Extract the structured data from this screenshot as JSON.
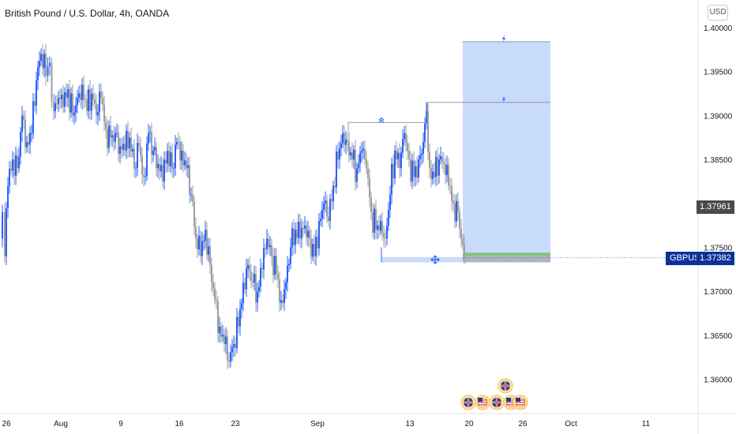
{
  "title": "British Pound / U.S. Dollar, 4h, OANDA",
  "currency": "USD",
  "symbol": "GBPUSD",
  "last_price_label": "1.37382",
  "marker_price_label": "1.37961",
  "colors": {
    "up": "#2962ff",
    "down": "#9e9e9e",
    "target_zone": "#c6d9fa",
    "last_price_bg": "#0c3299",
    "marker_price_bg": "#4a4a4a"
  },
  "chart_data": {
    "type": "candlestick",
    "y_axis": {
      "ticks": [
        "1.40000",
        "1.39500",
        "1.39000",
        "1.38500",
        "1.37500",
        "1.37000",
        "1.36500",
        "1.36000"
      ],
      "ylim": [
        1.357,
        1.4025
      ]
    },
    "x_axis": {
      "ticks": [
        "26",
        "Aug",
        "9",
        "16",
        "23",
        "Sep",
        "13",
        "20",
        "26",
        "Oct",
        "11"
      ]
    },
    "ohlc": {
      "points": [
        [
          0,
          1.376
        ],
        [
          3,
          1.379
        ],
        [
          6,
          1.374
        ],
        [
          10,
          1.382
        ],
        [
          16,
          1.385
        ],
        [
          22,
          1.384
        ],
        [
          28,
          1.39
        ],
        [
          34,
          1.387
        ],
        [
          40,
          1.388
        ],
        [
          46,
          1.394
        ],
        [
          52,
          1.397
        ],
        [
          58,
          1.3945
        ],
        [
          63,
          1.396
        ],
        [
          68,
          1.3905
        ],
        [
          74,
          1.392
        ],
        [
          80,
          1.391
        ],
        [
          86,
          1.393
        ],
        [
          92,
          1.39
        ],
        [
          98,
          1.392
        ],
        [
          104,
          1.3935
        ],
        [
          110,
          1.3905
        ],
        [
          116,
          1.3925
        ],
        [
          122,
          1.39
        ],
        [
          128,
          1.392
        ],
        [
          134,
          1.3885
        ],
        [
          140,
          1.3875
        ],
        [
          146,
          1.388
        ],
        [
          152,
          1.3865
        ],
        [
          158,
          1.386
        ],
        [
          164,
          1.3875
        ],
        [
          170,
          1.384
        ],
        [
          176,
          1.3865
        ],
        [
          182,
          1.383
        ],
        [
          188,
          1.388
        ],
        [
          194,
          1.386
        ],
        [
          200,
          1.3845
        ],
        [
          206,
          1.3825
        ],
        [
          212,
          1.386
        ],
        [
          218,
          1.384
        ],
        [
          224,
          1.387
        ],
        [
          230,
          1.386
        ],
        [
          236,
          1.384
        ],
        [
          242,
          1.381
        ],
        [
          248,
          1.376
        ],
        [
          254,
          1.374
        ],
        [
          260,
          1.377
        ],
        [
          266,
          1.373
        ],
        [
          272,
          1.369
        ],
        [
          278,
          1.366
        ],
        [
          284,
          1.364
        ],
        [
          290,
          1.362
        ],
        [
          296,
          1.364
        ],
        [
          302,
          1.366
        ],
        [
          308,
          1.371
        ],
        [
          314,
          1.373
        ],
        [
          320,
          1.371
        ],
        [
          326,
          1.37
        ],
        [
          332,
          1.3725
        ],
        [
          338,
          1.376
        ],
        [
          344,
          1.374
        ],
        [
          350,
          1.372
        ],
        [
          356,
          1.369
        ],
        [
          362,
          1.371
        ],
        [
          368,
          1.375
        ],
        [
          374,
          1.377
        ],
        [
          380,
          1.376
        ],
        [
          386,
          1.3775
        ],
        [
          392,
          1.376
        ],
        [
          398,
          1.374
        ],
        [
          404,
          1.378
        ],
        [
          410,
          1.38
        ],
        [
          416,
          1.378
        ],
        [
          422,
          1.382
        ],
        [
          428,
          1.385
        ],
        [
          434,
          1.388
        ],
        [
          440,
          1.387
        ],
        [
          446,
          1.385
        ],
        [
          452,
          1.384
        ],
        [
          458,
          1.386
        ],
        [
          464,
          1.384
        ],
        [
          470,
          1.379
        ],
        [
          476,
          1.377
        ],
        [
          482,
          1.378
        ],
        [
          488,
          1.376
        ],
        [
          494,
          1.381
        ],
        [
          500,
          1.386
        ],
        [
          506,
          1.384
        ],
        [
          512,
          1.388
        ],
        [
          518,
          1.385
        ],
        [
          524,
          1.383
        ],
        [
          530,
          1.385
        ],
        [
          536,
          1.387
        ],
        [
          540,
          1.3905
        ],
        [
          544,
          1.384
        ],
        [
          550,
          1.383
        ],
        [
          556,
          1.385
        ],
        [
          562,
          1.3845
        ],
        [
          568,
          1.382
        ],
        [
          574,
          1.38
        ],
        [
          580,
          1.379
        ],
        [
          584,
          1.376
        ],
        [
          588,
          1.3738
        ]
      ]
    },
    "drawings": {
      "target_zone": {
        "x0": 586,
        "x1": 697,
        "top": 1.3984,
        "bottom": 1.374
      },
      "bands": [
        {
          "price_top": 1.3744,
          "price_bottom": 1.374,
          "color": "#84c27f"
        },
        {
          "price_top": 1.374,
          "price_bottom": 1.3733,
          "color": "#b0b4bf"
        }
      ],
      "levels": [
        {
          "x0": 586,
          "x1": 697,
          "price": 1.3984,
          "icon_x": 638,
          "icon": "lightning-icon"
        },
        {
          "x0": 541,
          "x1": 697,
          "price": 1.3915,
          "icon_x": 638,
          "icon": "lightning-icon"
        },
        {
          "x0": 441,
          "x1": 541,
          "price": 1.3892,
          "icon_x": 483,
          "icon": "double-chevron-up-icon"
        }
      ],
      "selection": {
        "x0": 483,
        "x1": 586,
        "price_top": 1.3739,
        "price_bottom": 1.3733,
        "handle_x": 551
      }
    },
    "events": [
      {
        "x": 593,
        "flag": "uk"
      },
      {
        "x": 611,
        "flag": "us"
      },
      {
        "x": 629,
        "flag": "uk"
      },
      {
        "x": 647,
        "flag": "us"
      },
      {
        "x": 659,
        "flag": "us"
      },
      {
        "x": 640,
        "flag": "uk",
        "row": 2
      }
    ]
  }
}
